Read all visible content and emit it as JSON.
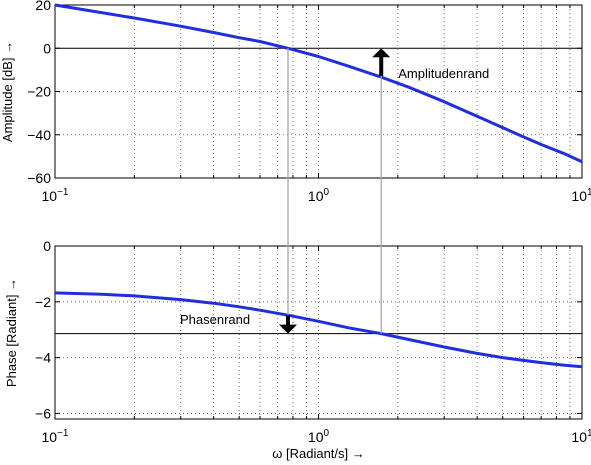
{
  "colors": {
    "curve": "#1f2fe0",
    "reference_line": "#000000",
    "margin_line": "#a8a8a8",
    "grid": "#555555",
    "arrow": "#000000"
  },
  "chart_data": [
    {
      "type": "line",
      "xscale": "log",
      "xlim": [
        0.1,
        10
      ],
      "ylim": [
        -60,
        20
      ],
      "xticks": [
        0.1,
        1,
        10
      ],
      "xtick_labels": [
        {
          "base": "10",
          "exp": "−1"
        },
        {
          "base": "10",
          "exp": "0"
        },
        {
          "base": "10",
          "exp": "1"
        }
      ],
      "yticks": [
        20,
        0,
        -20,
        -40,
        -60
      ],
      "ytick_labels": [
        "20",
        "0",
        "−20",
        "−40",
        "−60"
      ],
      "ylabel": "Amplitude [dB] →",
      "xlabel": "",
      "grid": true,
      "series": [
        {
          "x": [
            0.1,
            0.15,
            0.2,
            0.3,
            0.4,
            0.5,
            0.6,
            0.766,
            1.0,
            1.3,
            1.7,
            2.2,
            3.0,
            4.0,
            5.0,
            6.0,
            7.0,
            8.5,
            10
          ],
          "values": [
            20,
            16.5,
            14.0,
            10.2,
            7.3,
            4.9,
            3.1,
            0,
            -3.8,
            -8.3,
            -13.0,
            -18.0,
            -24.7,
            -31.4,
            -36.7,
            -41.0,
            -44.5,
            -48.6,
            -52.5
          ]
        }
      ],
      "reference_line_y": 0,
      "margin": {
        "label": "Amplitudenrand",
        "x": 1.73,
        "from": -12.8,
        "to": 0
      }
    },
    {
      "type": "line",
      "xscale": "log",
      "xlim": [
        0.1,
        10
      ],
      "ylim": [
        -6.2,
        0
      ],
      "xticks": [
        0.1,
        1,
        10
      ],
      "xtick_labels": [
        {
          "base": "10",
          "exp": "−1"
        },
        {
          "base": "10",
          "exp": "0"
        },
        {
          "base": "10",
          "exp": "1"
        }
      ],
      "yticks": [
        0,
        -2,
        -4,
        -6
      ],
      "ytick_labels": [
        "0",
        "−2",
        "−4",
        "−6"
      ],
      "ylabel": "Phase [Radiant] →",
      "xlabel": "ω [Radiant/s] →",
      "grid": true,
      "series": [
        {
          "x": [
            0.1,
            0.15,
            0.2,
            0.3,
            0.4,
            0.5,
            0.6,
            0.766,
            1.0,
            1.3,
            1.73,
            2.2,
            3.0,
            4.0,
            5.0,
            6.0,
            7.0,
            8.5,
            10
          ],
          "values": [
            -1.68,
            -1.73,
            -1.79,
            -1.92,
            -2.05,
            -2.18,
            -2.3,
            -2.48,
            -2.7,
            -2.93,
            -3.14,
            -3.35,
            -3.62,
            -3.85,
            -4.0,
            -4.1,
            -4.18,
            -4.27,
            -4.33
          ]
        }
      ],
      "reference_line_y": -3.14,
      "margin": {
        "label": "Phasenrand",
        "x": 0.766,
        "from": -2.48,
        "to": -3.14
      }
    }
  ]
}
